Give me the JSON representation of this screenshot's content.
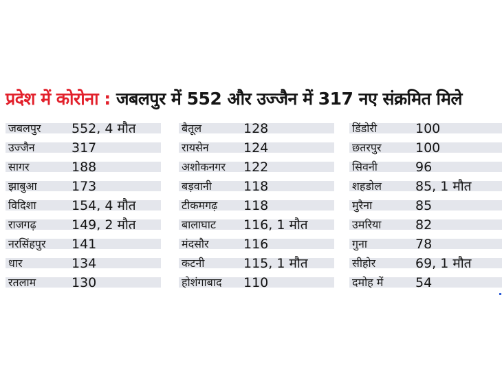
{
  "headline": {
    "label": "प्रदेश में कोरोना :",
    "text": "जबलपुर में 552 और उज्जैन में 317 नए संक्रमित मिले"
  },
  "columns": [
    [
      {
        "district": "जबलपुर",
        "value": "552, 4 मौत"
      },
      {
        "district": "उज्जैन",
        "value": "317"
      },
      {
        "district": "सागर",
        "value": "188"
      },
      {
        "district": "झाबुआ",
        "value": "173"
      },
      {
        "district": "विदिशा",
        "value": "154, 4 मौत"
      },
      {
        "district": "राजगढ़",
        "value": "149, 2 मौत"
      },
      {
        "district": "नरसिंहपुर",
        "value": "141"
      },
      {
        "district": "धार",
        "value": "134"
      },
      {
        "district": "रतलाम",
        "value": "130"
      }
    ],
    [
      {
        "district": "बैतूल",
        "value": "128"
      },
      {
        "district": "रायसेन",
        "value": "124"
      },
      {
        "district": "अशोकनगर",
        "value": "122"
      },
      {
        "district": "बड़वानी",
        "value": "118"
      },
      {
        "district": "टीकमगढ़",
        "value": "118"
      },
      {
        "district": "बालाघाट",
        "value": "116, 1 मौत"
      },
      {
        "district": "मंदसौर",
        "value": "116"
      },
      {
        "district": "कटनी",
        "value": "115, 1 मौत"
      },
      {
        "district": "होशंगाबाद",
        "value": "110"
      }
    ],
    [
      {
        "district": "डिंडोरी",
        "value": "100"
      },
      {
        "district": "छतरपुर",
        "value": "100"
      },
      {
        "district": "सिवनी",
        "value": "96"
      },
      {
        "district": "शहडोल",
        "value": "85, 1 मौत"
      },
      {
        "district": "मुरैना",
        "value": "85"
      },
      {
        "district": "उमरिया",
        "value": "82"
      },
      {
        "district": "गुना",
        "value": "78"
      },
      {
        "district": "सीहोर",
        "value": "69, 1 मौत"
      },
      {
        "district": "दमोह में",
        "value": "54"
      }
    ]
  ],
  "colors": {
    "label": "#e2202b",
    "headline": "#151515",
    "row_band": "#e4e6ec"
  }
}
